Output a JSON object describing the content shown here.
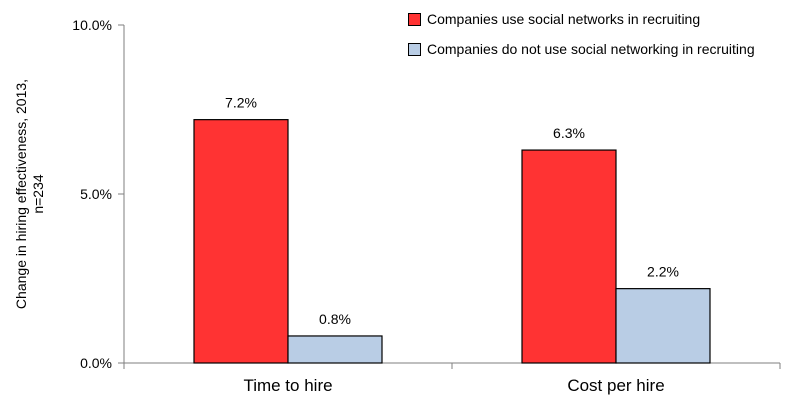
{
  "chart_data": {
    "type": "bar",
    "categories": [
      "Time to hire",
      "Cost per hire"
    ],
    "series": [
      {
        "name": "Companies use social networks in recruiting",
        "values": [
          7.2,
          6.3
        ],
        "color": "#ff3333"
      },
      {
        "name": "Companies do not use social networking in recruiting",
        "values": [
          0.8,
          2.2
        ],
        "color": "#b9cde5"
      }
    ],
    "data_labels": [
      [
        "7.2%",
        "6.3%"
      ],
      [
        "0.8%",
        "2.2%"
      ]
    ],
    "ylabel": [
      "Change  in hiring effectiveness,  2013,",
      "n=234"
    ],
    "xlabel": "",
    "ylim": [
      0,
      10
    ],
    "yticks": [
      0,
      5,
      10
    ],
    "ytick_labels": [
      "0.0%",
      "5.0%",
      "10.0%"
    ],
    "grid": false,
    "legend_position": "top-right"
  }
}
